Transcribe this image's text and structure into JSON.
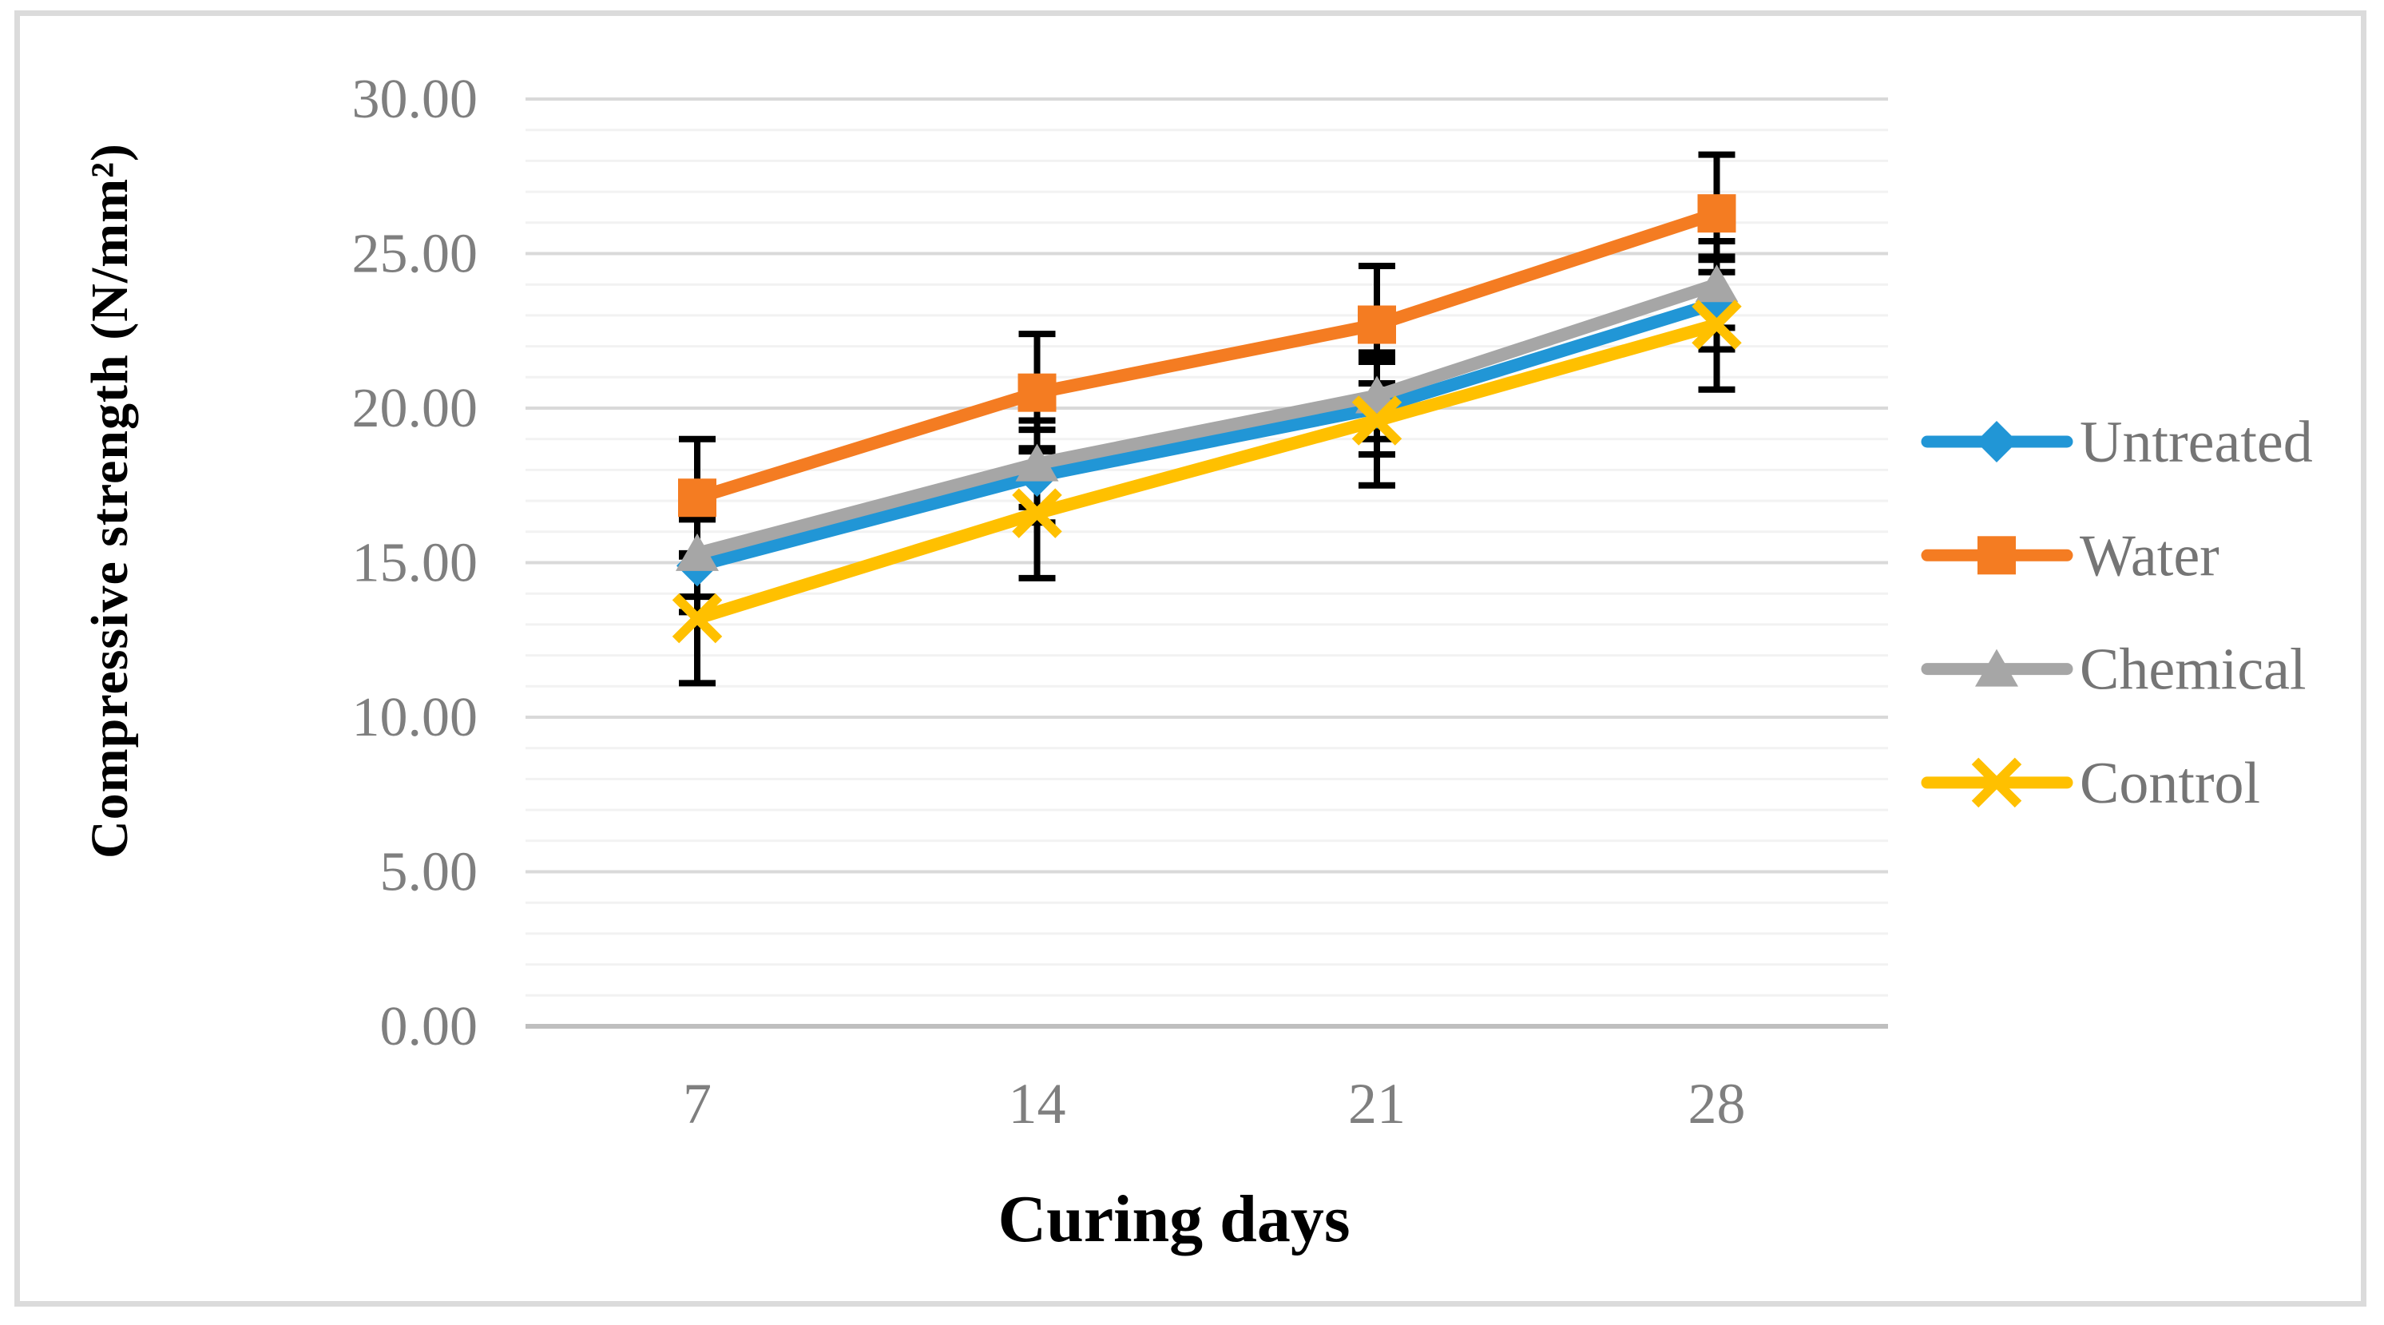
{
  "figure": {
    "y_axis_title": "Compressive strength (N/mm²)",
    "x_axis_title": "Curing days"
  },
  "chart_data": {
    "type": "line",
    "title": "",
    "xlabel": "Curing days",
    "ylabel": "Compressive strength (N/mm²)",
    "categories": [
      7,
      14,
      21,
      28
    ],
    "x_tick_labels": [
      "7",
      "14",
      "21",
      "28"
    ],
    "y_ticks": [
      0,
      5,
      10,
      15,
      20,
      25,
      30
    ],
    "y_tick_labels": [
      "0.00",
      "5.00",
      "10.00",
      "15.00",
      "20.00",
      "25.00",
      "30.00"
    ],
    "ylim": [
      0,
      30
    ],
    "y_minor_unit": 1,
    "y_major_unit": 5,
    "grid": "horizontal",
    "legend_position": "right",
    "series": [
      {
        "name": "Untreated",
        "color": "#2196D6",
        "marker": "diamond",
        "values": [
          14.9,
          17.8,
          20.0,
          23.4
        ],
        "error": 1.5
      },
      {
        "name": "Water",
        "color": "#F47C22",
        "marker": "square",
        "values": [
          17.1,
          20.5,
          22.7,
          26.3
        ],
        "error": 1.9
      },
      {
        "name": "Chemical",
        "color": "#A6A6A6",
        "marker": "triangle",
        "values": [
          15.3,
          18.2,
          20.4,
          24.0
        ],
        "error": 1.4
      },
      {
        "name": "Control",
        "color": "#FFC000",
        "marker": "x",
        "values": [
          13.2,
          16.6,
          19.6,
          22.7
        ],
        "error": 2.1
      }
    ],
    "error_bar_color": "#000000"
  },
  "style": {
    "grid_minor_color": "#F2F2F2",
    "grid_major_color": "#D9D9D9",
    "axis_line_color": "#BFBFBF",
    "tick_label_color": "#7F7F7F",
    "legend_text_color": "#757575",
    "title_color": "#000000",
    "frame_border_color": "#DBDBDB"
  }
}
